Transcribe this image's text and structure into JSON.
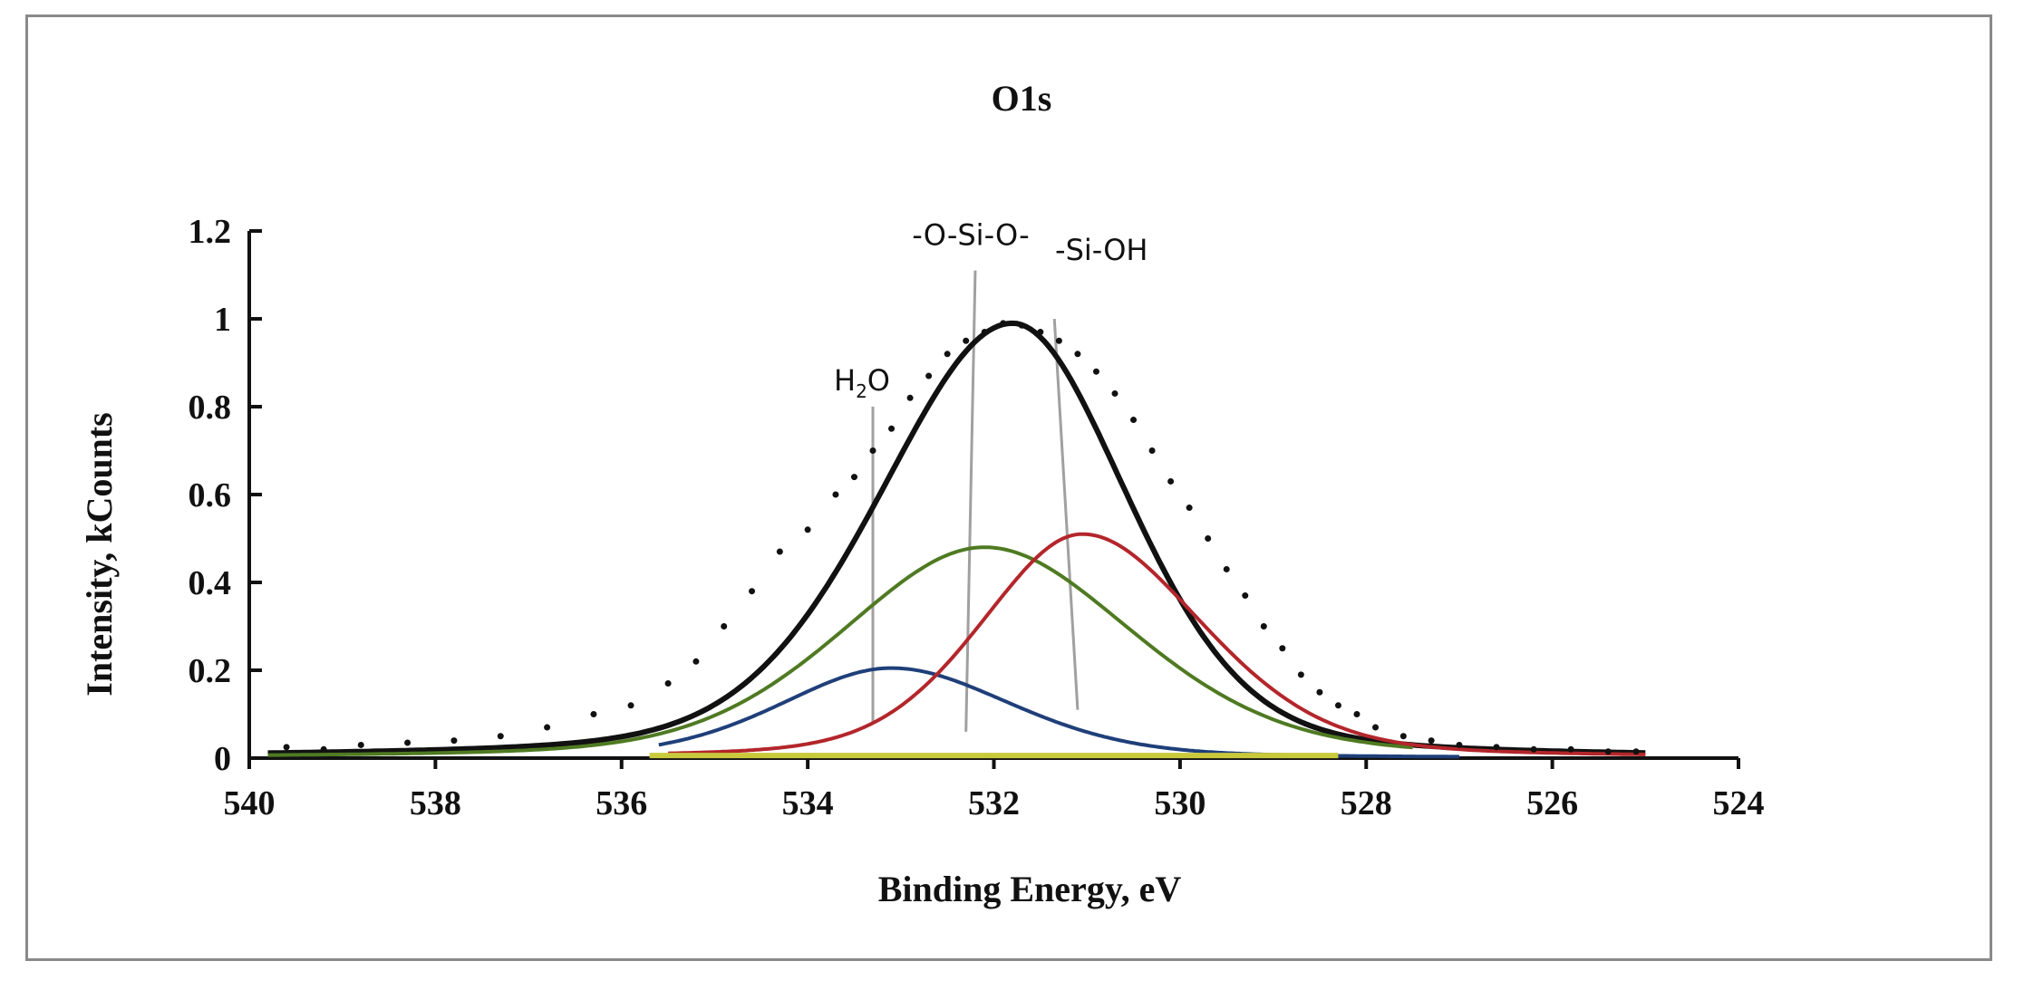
{
  "chart_data": {
    "type": "line",
    "title": "O1s",
    "xlabel": "Binding Energy, eV",
    "ylabel": "Intensity, kCounts",
    "xlim": [
      540,
      524
    ],
    "ylim": [
      0,
      1.2
    ],
    "x_reversed": true,
    "x_ticks": [
      "540",
      "538",
      "536",
      "534",
      "532",
      "530",
      "528",
      "526",
      "524"
    ],
    "y_ticks": [
      "0",
      "0.2",
      "0.4",
      "0.6",
      "0.8",
      "1",
      "1.2"
    ],
    "grid": false,
    "legend": "none",
    "series": [
      {
        "kind": "peak",
        "role": "envelope",
        "color": "#111111",
        "center": 531.8,
        "amplitude": 0.99,
        "sigma_left": 1.45,
        "sigma_right": 1.25,
        "x_range": [
          539.8,
          525.0
        ]
      },
      {
        "kind": "peak",
        "role": "component",
        "color": "#1f3f7a",
        "center": 533.1,
        "amplitude": 0.205,
        "sigma_left": 1.2,
        "sigma_right": 1.3,
        "x_range": [
          535.6,
          527.0
        ]
      },
      {
        "kind": "peak",
        "role": "component",
        "color": "#4f7a22",
        "center": 532.1,
        "amplitude": 0.48,
        "sigma_left": 1.55,
        "sigma_right": 1.6,
        "x_range": [
          539.8,
          527.5
        ]
      },
      {
        "kind": "peak",
        "role": "component",
        "color": "#b3262b",
        "center": 531.05,
        "amplitude": 0.51,
        "sigma_left": 1.1,
        "sigma_right": 1.3,
        "x_range": [
          535.5,
          525.0
        ]
      },
      {
        "kind": "baseline",
        "color": "#c9c93c",
        "y": 0.006,
        "x_range": [
          535.7,
          528.3
        ]
      }
    ],
    "measured_points": {
      "color": "#111111",
      "x": [
        539.6,
        539.2,
        538.8,
        538.3,
        537.8,
        537.3,
        536.8,
        536.3,
        535.9,
        535.5,
        535.2,
        534.9,
        534.6,
        534.3,
        534.0,
        533.7,
        533.5,
        533.3,
        533.1,
        532.9,
        532.7,
        532.5,
        532.3,
        532.1,
        531.9,
        531.7,
        531.5,
        531.3,
        531.1,
        530.9,
        530.7,
        530.5,
        530.3,
        530.1,
        529.9,
        529.7,
        529.5,
        529.3,
        529.1,
        528.9,
        528.7,
        528.5,
        528.3,
        528.1,
        527.9,
        527.6,
        527.3,
        527.0,
        526.6,
        526.2,
        525.8,
        525.4,
        525.1
      ],
      "y": [
        0.025,
        0.02,
        0.03,
        0.035,
        0.04,
        0.05,
        0.07,
        0.1,
        0.12,
        0.17,
        0.22,
        0.3,
        0.38,
        0.47,
        0.52,
        0.6,
        0.64,
        0.7,
        0.75,
        0.82,
        0.87,
        0.92,
        0.95,
        0.97,
        0.99,
        0.985,
        0.97,
        0.95,
        0.92,
        0.88,
        0.83,
        0.77,
        0.7,
        0.63,
        0.57,
        0.5,
        0.43,
        0.37,
        0.3,
        0.25,
        0.19,
        0.15,
        0.12,
        0.1,
        0.07,
        0.05,
        0.04,
        0.03,
        0.025,
        0.02,
        0.02,
        0.015,
        0.015
      ]
    },
    "annotations": [
      {
        "id": "h2o",
        "text_main": "H",
        "text_sub": "2",
        "text_tail": "O",
        "x": 533.3,
        "y_top": 0.8,
        "y_bottom": 0.08
      },
      {
        "id": "osio",
        "text": "-O-Si-O-",
        "x_top": 532.2,
        "x_bottom": 532.3,
        "y_top": 1.11,
        "y_bottom": 0.06
      },
      {
        "id": "sioh",
        "text": "-Si-OH",
        "x_top": 531.35,
        "x_bottom": 531.1,
        "y_top": 1.0,
        "y_bottom": 0.11
      }
    ]
  }
}
